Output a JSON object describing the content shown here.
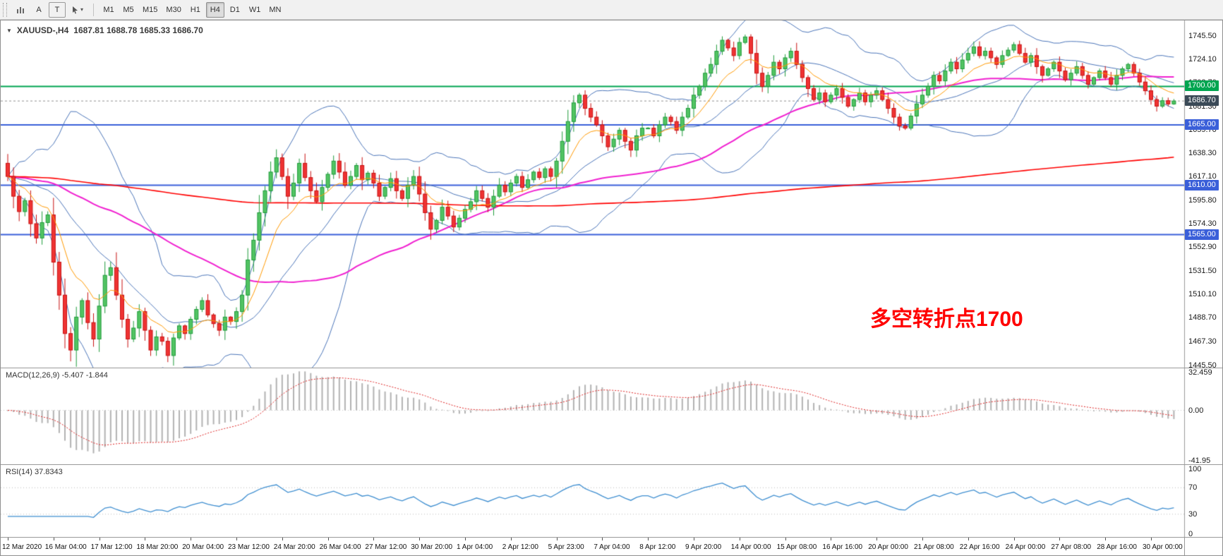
{
  "toolbar": {
    "font_tool": "A",
    "text_tool": "T",
    "timeframes": [
      {
        "label": "M1"
      },
      {
        "label": "M5"
      },
      {
        "label": "M15"
      },
      {
        "label": "M30"
      },
      {
        "label": "H1"
      },
      {
        "label": "H4",
        "active": true
      },
      {
        "label": "D1"
      },
      {
        "label": "W1"
      },
      {
        "label": "MN"
      }
    ]
  },
  "chart": {
    "symbol_period": "XAUUSD-,H4",
    "ohlc_text": "1687.81 1688.78 1685.33 1686.70",
    "annotation_text": "多空转折点1700",
    "annotation_color": "#ff0000",
    "price_axis": [
      "1745.50",
      "1724.10",
      "1702.70",
      "1681.30",
      "1659.70",
      "1638.30",
      "1617.10",
      "1595.80",
      "1574.30",
      "1552.90",
      "1531.50",
      "1510.10",
      "1488.70",
      "1467.30",
      "1445.50"
    ],
    "hlines": [
      {
        "value": 1700.0,
        "label": "1700.00",
        "color": "#00a550"
      },
      {
        "value": 1665.0,
        "label": "1665.00",
        "color": "#3a5fd9"
      },
      {
        "value": 1610.0,
        "label": "1610.00",
        "color": "#3a5fd9"
      },
      {
        "value": 1565.0,
        "label": "1565.00",
        "color": "#3a5fd9"
      }
    ],
    "price_line": {
      "value": 1686.7,
      "label": "1686.70",
      "badge_color": "#3b4a57",
      "line_color": "#909090"
    },
    "y_max": 1760,
    "y_min": 1444
  },
  "macd": {
    "label": "MACD(12,26,9) -5.407 -1.844",
    "axis_labels": [
      {
        "value": 32.459,
        "text": "32.459"
      },
      {
        "value": 0,
        "text": "0.00"
      },
      {
        "value": -41.95,
        "text": "-41.95"
      }
    ],
    "y_max": 35,
    "y_min": -45
  },
  "rsi": {
    "label": "RSI(14) 37.8343",
    "axis_labels": [
      {
        "value": 100,
        "text": "100"
      },
      {
        "value": 70,
        "text": "70"
      },
      {
        "value": 30,
        "text": "30"
      },
      {
        "value": 0,
        "text": "0"
      }
    ],
    "levels": [
      30,
      70
    ]
  },
  "time_axis": {
    "bars_per_label": 8,
    "labels": [
      "12 Mar 2020",
      "16 Mar 04:00",
      "17 Mar 12:00",
      "18 Mar 20:00",
      "20 Mar 04:00",
      "23 Mar 12:00",
      "24 Mar 20:00",
      "26 Mar 04:00",
      "27 Mar 12:00",
      "30 Mar 20:00",
      "1 Apr 04:00",
      "2 Apr 12:00",
      "5 Apr 23:00",
      "7 Apr 04:00",
      "8 Apr 12:00",
      "9 Apr 20:00",
      "14 Apr 00:00",
      "15 Apr 08:00",
      "16 Apr 16:00",
      "20 Apr 00:00",
      "21 Apr 08:00",
      "22 Apr 16:00",
      "24 Apr 00:00",
      "27 Apr 08:00",
      "28 Apr 16:00",
      "30 Apr 00:00"
    ],
    "note": "H4 bars, 8 bars between axis labels"
  },
  "chart_data": {
    "type": "candlestick",
    "symbol": "XAUUSD-",
    "timeframe": "H4",
    "title_ohlc": {
      "open": 1687.81,
      "high": 1688.78,
      "low": 1685.33,
      "close": 1686.7
    },
    "current_price": 1686.7,
    "price_axis_range": [
      1445.5,
      1745.5
    ],
    "horizontal_levels": [
      1700.0,
      1665.0,
      1610.0,
      1565.0
    ],
    "first_open": 1630,
    "closes": [
      1618,
      1600,
      1586,
      1596,
      1575,
      1562,
      1576,
      1583,
      1540,
      1510,
      1475,
      1460,
      1490,
      1505,
      1485,
      1470,
      1500,
      1528,
      1535,
      1510,
      1488,
      1470,
      1480,
      1495,
      1478,
      1460,
      1472,
      1468,
      1455,
      1471,
      1482,
      1475,
      1488,
      1497,
      1505,
      1492,
      1484,
      1478,
      1490,
      1486,
      1495,
      1510,
      1542,
      1560,
      1585,
      1605,
      1622,
      1635,
      1618,
      1600,
      1612,
      1630,
      1617,
      1605,
      1595,
      1608,
      1620,
      1632,
      1622,
      1610,
      1618,
      1628,
      1615,
      1621,
      1612,
      1600,
      1608,
      1616,
      1605,
      1598,
      1610,
      1618,
      1602,
      1585,
      1570,
      1578,
      1590,
      1582,
      1572,
      1580,
      1588,
      1595,
      1605,
      1598,
      1590,
      1600,
      1610,
      1604,
      1612,
      1618,
      1608,
      1615,
      1622,
      1617,
      1625,
      1618,
      1632,
      1650,
      1668,
      1685,
      1692,
      1680,
      1672,
      1665,
      1655,
      1645,
      1652,
      1660,
      1650,
      1642,
      1655,
      1662,
      1662,
      1655,
      1665,
      1672,
      1668,
      1660,
      1672,
      1680,
      1692,
      1700,
      1712,
      1720,
      1732,
      1742,
      1735,
      1728,
      1740,
      1745,
      1730,
      1712,
      1700,
      1710,
      1722,
      1716,
      1726,
      1732,
      1720,
      1708,
      1698,
      1688,
      1694,
      1686,
      1692,
      1698,
      1690,
      1682,
      1688,
      1694,
      1686,
      1692,
      1696,
      1688,
      1680,
      1672,
      1664,
      1662,
      1673,
      1684,
      1692,
      1700,
      1710,
      1705,
      1714,
      1722,
      1716,
      1724,
      1730,
      1736,
      1728,
      1732,
      1726,
      1720,
      1728,
      1733,
      1738,
      1730,
      1722,
      1728,
      1718,
      1710,
      1716,
      1722,
      1714,
      1706,
      1712,
      1718,
      1710,
      1702,
      1708,
      1714,
      1708,
      1702,
      1710,
      1716,
      1720,
      1712,
      1704,
      1696,
      1688,
      1682,
      1687,
      1684,
      1686.7
    ],
    "macd": {
      "fast": 12,
      "slow": 26,
      "signal": 9,
      "current_macd": -5.407,
      "current_signal": -1.844,
      "shown_range": [
        -41.95,
        32.459
      ]
    },
    "rsi": {
      "period": 14,
      "current": 37.8343,
      "levels": [
        30,
        70
      ]
    },
    "overlays": {
      "bollinger": {
        "period": 20,
        "deviation": 2,
        "color": "#4a74b8"
      },
      "ma_fast": {
        "period": 10,
        "type": "ema",
        "color": "#ff9900"
      },
      "ma_mid": {
        "period": 50,
        "type": "sma",
        "color": "#f020d0"
      },
      "ma_slow": {
        "period": 200,
        "type": "sma",
        "color": "#ff0000"
      }
    },
    "colors": {
      "bull_border": "#1e9b3a",
      "bull_fill": "#52c463",
      "bear_border": "#c81010",
      "bear_fill": "#ef3333",
      "macd_hist": "#b2b2b2",
      "macd_signal": "#dd2222",
      "rsi_line": "#3e8ed0"
    }
  }
}
